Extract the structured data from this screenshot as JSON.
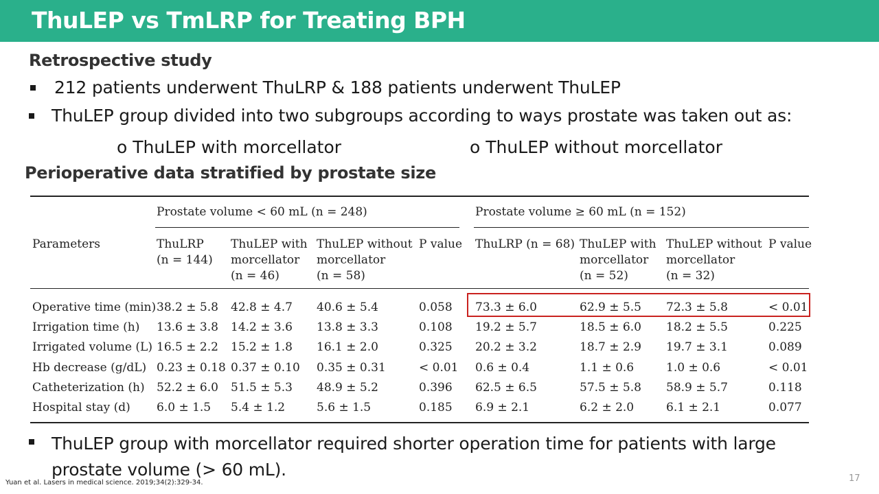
{
  "slide": {
    "title": "ThuLEP vs TmLRP for Treating BPH",
    "subheading": "Retrospective study",
    "bullets": [
      "212 patients underwent ThuLRP & 188 patients underwent ThuLEP",
      "ThuLEP group divided into two subgroups according to ways prostate was taken out as:"
    ],
    "subitems": [
      "o ThuLEP with morcellator",
      "o ThuLEP without morcellator"
    ],
    "table_heading": "Perioperative data stratified by prostate size",
    "conclusion_line1": "ThuLEP group with morcellator required shorter operation time for patients with large",
    "conclusion_line2": "prostate volume (> 60 mL).",
    "citation": "Yuan et al. Lasers in medical science. 2019;34(2):329-34.",
    "page_number": "17",
    "colors": {
      "title_bar": "#2ab08b",
      "highlight_box": "#c9211e"
    }
  },
  "table": {
    "group_headers": [
      "Prostate volume < 60 mL (n = 248)",
      "Prostate volume ≥ 60 mL (n = 152)"
    ],
    "param_header": "Parameters",
    "columns": [
      [
        "ThuLRP",
        "(n = 144)",
        ""
      ],
      [
        "ThuLEP with",
        "morcellator",
        "(n = 46)"
      ],
      [
        "ThuLEP without",
        "morcellator",
        "(n = 58)"
      ],
      [
        "P value",
        "",
        ""
      ],
      [
        "ThuLRP (n = 68)",
        "",
        ""
      ],
      [
        "ThuLEP with",
        "morcellator",
        "(n = 52)"
      ],
      [
        "ThuLEP without",
        "morcellator",
        "(n = 32)"
      ],
      [
        "P value",
        "",
        ""
      ]
    ],
    "rows": [
      {
        "label": "Operative time (min)",
        "values": [
          "38.2 ± 5.8",
          "42.8 ± 4.7",
          "40.6 ± 5.4",
          "0.058",
          "73.3 ± 6.0",
          "62.9 ± 5.5",
          "72.3 ± 5.8",
          "< 0.01"
        ],
        "highlighted": true
      },
      {
        "label": "Irrigation time (h)",
        "values": [
          "13.6 ± 3.8",
          "14.2 ± 3.6",
          "13.8 ± 3.3",
          "0.108",
          "19.2 ± 5.7",
          "18.5 ± 6.0",
          "18.2 ± 5.5",
          "0.225"
        ]
      },
      {
        "label": "Irrigated volume (L)",
        "values": [
          "16.5 ± 2.2",
          "15.2 ± 1.8",
          "16.1 ± 2.0",
          "0.325",
          "20.2 ± 3.2",
          "18.7 ± 2.9",
          "19.7 ± 3.1",
          "0.089"
        ]
      },
      {
        "label": "Hb decrease (g/dL)",
        "values": [
          "0.23 ± 0.18",
          "0.37 ± 0.10",
          "0.35 ± 0.31",
          "< 0.01",
          "0.6 ± 0.4",
          "1.1 ± 0.6",
          "1.0 ± 0.6",
          "< 0.01"
        ]
      },
      {
        "label": "Catheterization (h)",
        "values": [
          "52.2 ± 6.0",
          "51.5 ± 5.3",
          "48.9 ± 5.2",
          "0.396",
          "62.5 ± 6.5",
          "57.5 ± 5.8",
          "58.9 ± 5.7",
          "0.118"
        ]
      },
      {
        "label": "Hospital stay (d)",
        "values": [
          "6.0 ± 1.5",
          "5.4 ± 1.2",
          "5.6 ± 1.5",
          "0.185",
          "6.9 ± 2.1",
          "6.2 ± 2.0",
          "6.1 ± 2.1",
          "0.077"
        ]
      }
    ]
  }
}
